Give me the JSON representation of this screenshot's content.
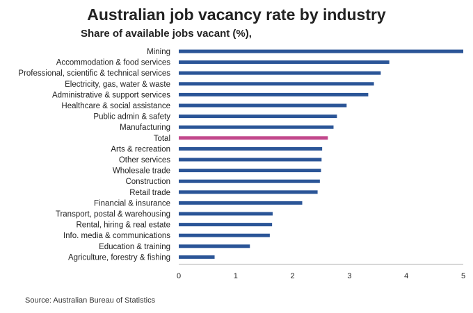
{
  "chart_data": {
    "type": "bar",
    "orientation": "horizontal",
    "title": "Australian job vacancy rate by industry",
    "subtitle": "Share of available jobs vacant (%),",
    "source": "Source: Australian Bureau of Statistics",
    "categories": [
      "Mining",
      "Accommodation & food services",
      "Professional, scientific & technical services",
      "Electricity, gas, water & waste",
      "Administrative & support services",
      "Healthcare & social assistance",
      "Public admin & safety",
      "Manufacturing",
      "Total",
      "Arts & recreation",
      "Other services",
      "Wholesale trade",
      "Construction",
      "Retail trade",
      "Financial & insurance",
      "Transport, postal & warehousing",
      "Rental, hiring & real estate",
      "Info. media & communications",
      "Education & training",
      "Agriculture, forestry & fishing"
    ],
    "values": [
      5.0,
      3.7,
      3.55,
      3.43,
      3.33,
      2.95,
      2.78,
      2.72,
      2.62,
      2.52,
      2.51,
      2.5,
      2.48,
      2.44,
      2.17,
      1.65,
      1.64,
      1.6,
      1.25,
      0.63
    ],
    "highlight": "Total",
    "xlim": [
      0,
      5
    ],
    "xticks": [
      "0",
      "1",
      "2",
      "3",
      "4",
      "5"
    ],
    "grid": false,
    "colors": {
      "bar": "#2b5597",
      "highlight": "#c2478c",
      "axis": "#999999",
      "text": "#222222"
    }
  }
}
